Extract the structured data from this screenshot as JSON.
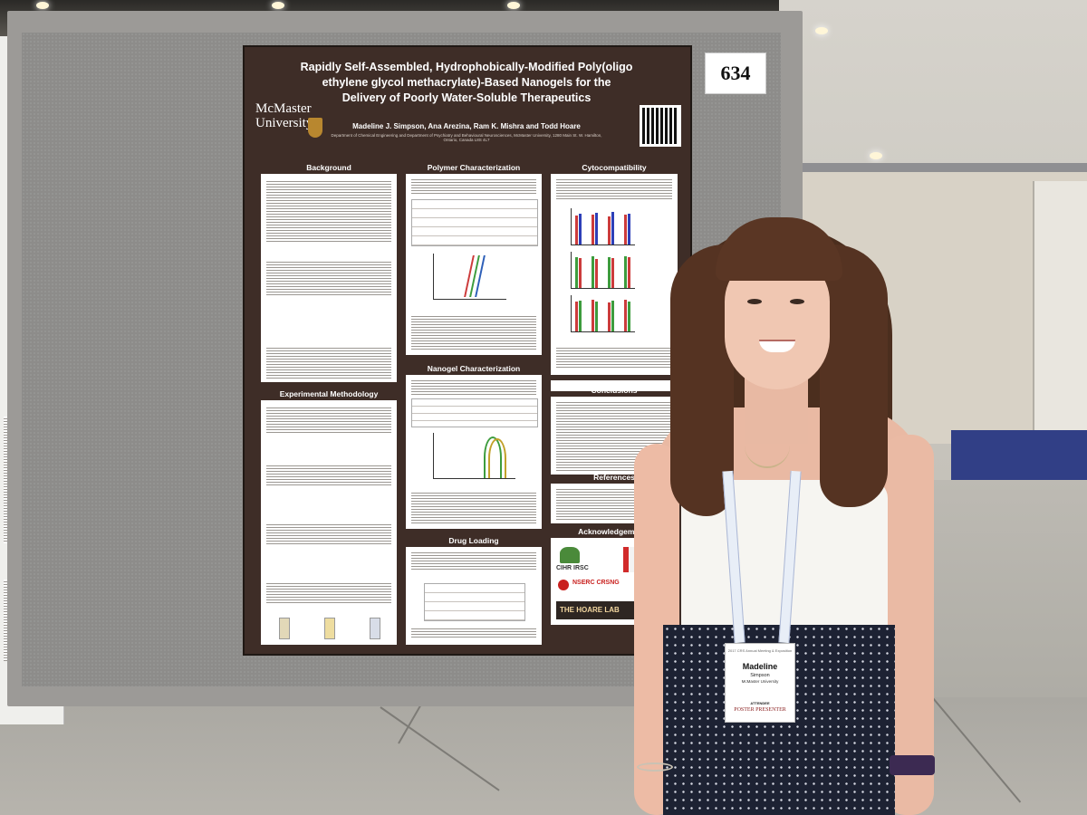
{
  "booth": {
    "number": "634"
  },
  "poster": {
    "title": "Rapidly Self-Assembled, Hydrophobically-Modified Poly(oligo ethylene glycol methacrylate)-Based Nanogels for the Delivery of Poorly Water-Soluble Therapeutics",
    "university": "McMaster University",
    "authors": "Madeline J. Simpson, Ana Arezina, Ram K. Mishra and Todd Hoare",
    "affiliation": "Department of Chemical Engineering and Department of Psychiatry and Behavioural Neurosciences, McMaster University, 1280 Main St. W. Hamilton, Ontario, Canada L8S 4L7",
    "sections": {
      "background": "Background",
      "experimental": "Experimental Methodology",
      "polymer": "Polymer Characterization",
      "nanogel": "Nanogel Characterization",
      "drug_loading": "Drug Loading",
      "cytocompat": "Cytocompatibility",
      "conclusions": "Conclusions",
      "references": "References",
      "acknowledgements": "Acknowledgements"
    },
    "ack_logos": {
      "cihr": "CIHR IRSC",
      "nserc": "NSERC CRSNG",
      "lab": "THE HOARE LAB"
    }
  },
  "badge": {
    "event": "2017 CRS Annual Meeting & Exposition",
    "first_name": "Madeline",
    "last_name": "Simpson",
    "organization": "McMaster University",
    "role": "ATTENDEE",
    "presenter": "POSTER PRESENTER"
  },
  "neighbor": {
    "text": "etts, U.S.A."
  },
  "colors": {
    "poster_bg": "#3e2d27",
    "poster_panel": "#ffffff",
    "board": "#8d8c8a",
    "hair": "#553322",
    "shirt": "#f6f5f1",
    "skirt": "#1d2233"
  }
}
